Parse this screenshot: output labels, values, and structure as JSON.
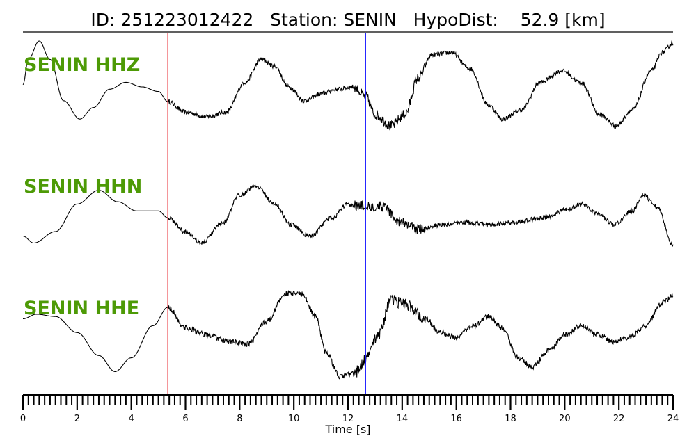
{
  "header": {
    "title": "ID: 251223012422   Station: SENIN   HypoDist:    52.9 [km]"
  },
  "chart_data": {
    "type": "line",
    "title": "ID: 251223012422   Station: SENIN   HypoDist:    52.9 [km]",
    "xlabel": "Time [s]",
    "ylabel": "",
    "xlim": [
      0,
      24
    ],
    "x_ticks": [
      0,
      2,
      4,
      6,
      8,
      10,
      12,
      14,
      16,
      18,
      20,
      22,
      24
    ],
    "grid": false,
    "label_color": "#4d9a06",
    "p_pick": {
      "time": 5.35,
      "color": "#e8141c"
    },
    "s_pick": {
      "time": 12.65,
      "color": "#1a1aff"
    },
    "series": [
      {
        "name": "SENIN HHZ",
        "noise": 0.05,
        "points": [
          [
            0,
            0.05
          ],
          [
            0.2,
            0.6
          ],
          [
            0.6,
            1.0
          ],
          [
            1.0,
            0.6
          ],
          [
            1.5,
            -0.3
          ],
          [
            2.1,
            -0.7
          ],
          [
            2.6,
            -0.45
          ],
          [
            3.2,
            -0.05
          ],
          [
            3.8,
            0.1
          ],
          [
            4.4,
            0.0
          ],
          [
            5.0,
            -0.1
          ],
          [
            5.35,
            -0.32
          ],
          [
            6.0,
            -0.55
          ],
          [
            6.8,
            -0.65
          ],
          [
            7.5,
            -0.55
          ],
          [
            8.2,
            0.1
          ],
          [
            8.8,
            0.6
          ],
          [
            9.3,
            0.45
          ],
          [
            9.8,
            0.0
          ],
          [
            10.4,
            -0.3
          ],
          [
            11.0,
            -0.15
          ],
          [
            11.6,
            -0.05
          ],
          [
            12.2,
            0.0
          ],
          [
            12.65,
            -0.2
          ],
          [
            13.0,
            -0.6
          ],
          [
            13.6,
            -0.85
          ],
          [
            14.1,
            -0.6
          ],
          [
            14.6,
            0.2
          ],
          [
            15.1,
            0.7
          ],
          [
            15.8,
            0.75
          ],
          [
            16.5,
            0.4
          ],
          [
            17.2,
            -0.4
          ],
          [
            17.7,
            -0.7
          ],
          [
            18.4,
            -0.5
          ],
          [
            19.1,
            0.1
          ],
          [
            19.9,
            0.35
          ],
          [
            20.6,
            0.1
          ],
          [
            21.3,
            -0.6
          ],
          [
            21.9,
            -0.85
          ],
          [
            22.5,
            -0.5
          ],
          [
            23.2,
            0.35
          ],
          [
            23.6,
            0.75
          ],
          [
            24,
            0.95
          ]
        ]
      },
      {
        "name": "SENIN HHN",
        "noise": 0.05,
        "points": [
          [
            0,
            -0.6
          ],
          [
            0.4,
            -0.75
          ],
          [
            1.2,
            -0.5
          ],
          [
            2.0,
            0.1
          ],
          [
            2.8,
            0.4
          ],
          [
            3.5,
            0.15
          ],
          [
            4.2,
            -0.05
          ],
          [
            5.0,
            -0.05
          ],
          [
            5.35,
            -0.2
          ],
          [
            6.0,
            -0.5
          ],
          [
            6.6,
            -0.75
          ],
          [
            7.4,
            -0.3
          ],
          [
            8.0,
            0.3
          ],
          [
            8.6,
            0.5
          ],
          [
            9.3,
            0.1
          ],
          [
            9.9,
            -0.35
          ],
          [
            10.6,
            -0.6
          ],
          [
            11.4,
            -0.2
          ],
          [
            12.0,
            0.1
          ],
          [
            12.65,
            0.05
          ],
          [
            13.2,
            0.05
          ],
          [
            14.0,
            -0.3
          ],
          [
            14.6,
            -0.45
          ],
          [
            15.5,
            -0.35
          ],
          [
            16.3,
            -0.3
          ],
          [
            17.2,
            -0.35
          ],
          [
            18.2,
            -0.3
          ],
          [
            19.2,
            -0.2
          ],
          [
            20.2,
            0.0
          ],
          [
            20.6,
            0.1
          ],
          [
            21.2,
            -0.1
          ],
          [
            21.8,
            -0.35
          ],
          [
            22.5,
            -0.05
          ],
          [
            22.9,
            0.3
          ],
          [
            23.4,
            0.05
          ],
          [
            24,
            -0.8
          ]
        ]
      },
      {
        "name": "SENIN HHE",
        "noise": 0.06,
        "points": [
          [
            0,
            0.25
          ],
          [
            0.5,
            0.35
          ],
          [
            1.2,
            0.3
          ],
          [
            2.0,
            -0.05
          ],
          [
            2.8,
            -0.55
          ],
          [
            3.4,
            -0.9
          ],
          [
            4.0,
            -0.6
          ],
          [
            4.8,
            0.1
          ],
          [
            5.35,
            0.5
          ],
          [
            6.0,
            0.05
          ],
          [
            6.8,
            -0.1
          ],
          [
            7.6,
            -0.25
          ],
          [
            8.3,
            -0.3
          ],
          [
            9.0,
            0.2
          ],
          [
            9.7,
            0.8
          ],
          [
            10.3,
            0.8
          ],
          [
            10.8,
            0.3
          ],
          [
            11.2,
            -0.5
          ],
          [
            11.7,
            -1.0
          ],
          [
            12.2,
            -0.95
          ],
          [
            12.65,
            -0.65
          ],
          [
            13.1,
            -0.1
          ],
          [
            13.6,
            0.65
          ],
          [
            14.2,
            0.55
          ],
          [
            14.8,
            0.3
          ],
          [
            15.4,
            -0.05
          ],
          [
            16.0,
            -0.15
          ],
          [
            16.6,
            0.1
          ],
          [
            17.2,
            0.3
          ],
          [
            17.7,
            0.05
          ],
          [
            18.3,
            -0.6
          ],
          [
            18.8,
            -0.8
          ],
          [
            19.4,
            -0.45
          ],
          [
            20.0,
            -0.1
          ],
          [
            20.6,
            0.1
          ],
          [
            21.2,
            -0.1
          ],
          [
            21.8,
            -0.25
          ],
          [
            22.4,
            -0.15
          ],
          [
            23.0,
            0.1
          ],
          [
            23.6,
            0.6
          ],
          [
            24,
            0.75
          ]
        ]
      }
    ]
  }
}
